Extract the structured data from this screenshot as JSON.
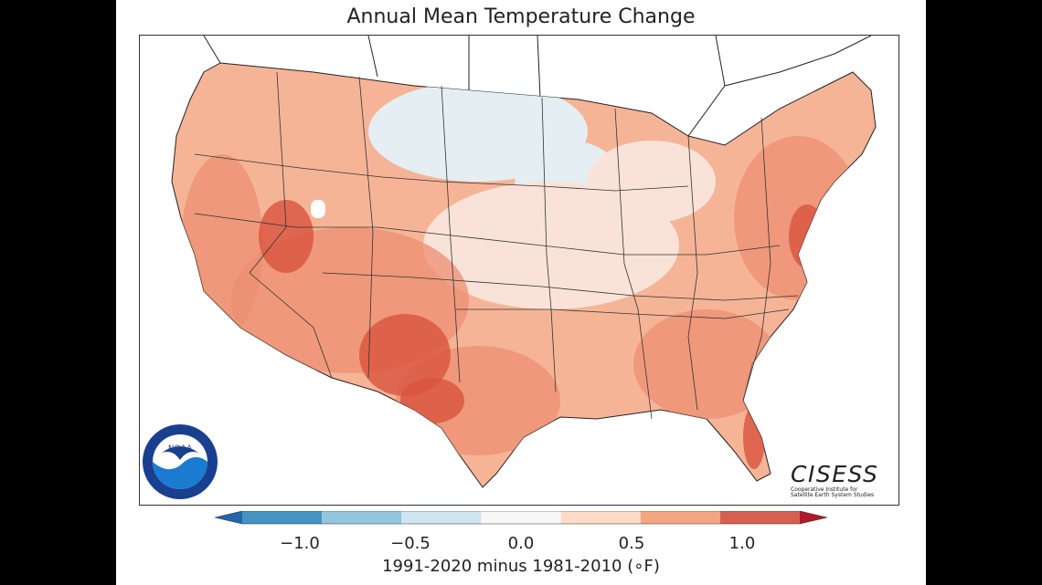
{
  "title": "Annual Mean Temperature Change",
  "colorbar": {
    "label": "1991-2020 minus 1981-2010 (∘F)",
    "ticks": [
      "−1.0",
      "−0.5",
      "0.0",
      "0.5",
      "1.0"
    ],
    "bins": [
      {
        "color": "#2166ac"
      },
      {
        "color": "#4393c3"
      },
      {
        "color": "#92c5de"
      },
      {
        "color": "#d1e5f0"
      },
      {
        "color": "#f7f7f7"
      },
      {
        "color": "#fddbc7"
      },
      {
        "color": "#f4a582"
      },
      {
        "color": "#d6604d"
      },
      {
        "color": "#b2182b"
      }
    ]
  },
  "logos": {
    "noaa": "NOAA",
    "cisess_name": "CISESS",
    "cisess_line1": "Cooperative Institute for",
    "cisess_line2": "Satellite Earth System Studies"
  },
  "colors": {
    "land_base": "#f6b497",
    "cool": "#e4eef3",
    "neutral": "#f9e3d8",
    "warm": "#ec8f72",
    "hot": "#d9543e",
    "ocean": "#ffffff"
  }
}
